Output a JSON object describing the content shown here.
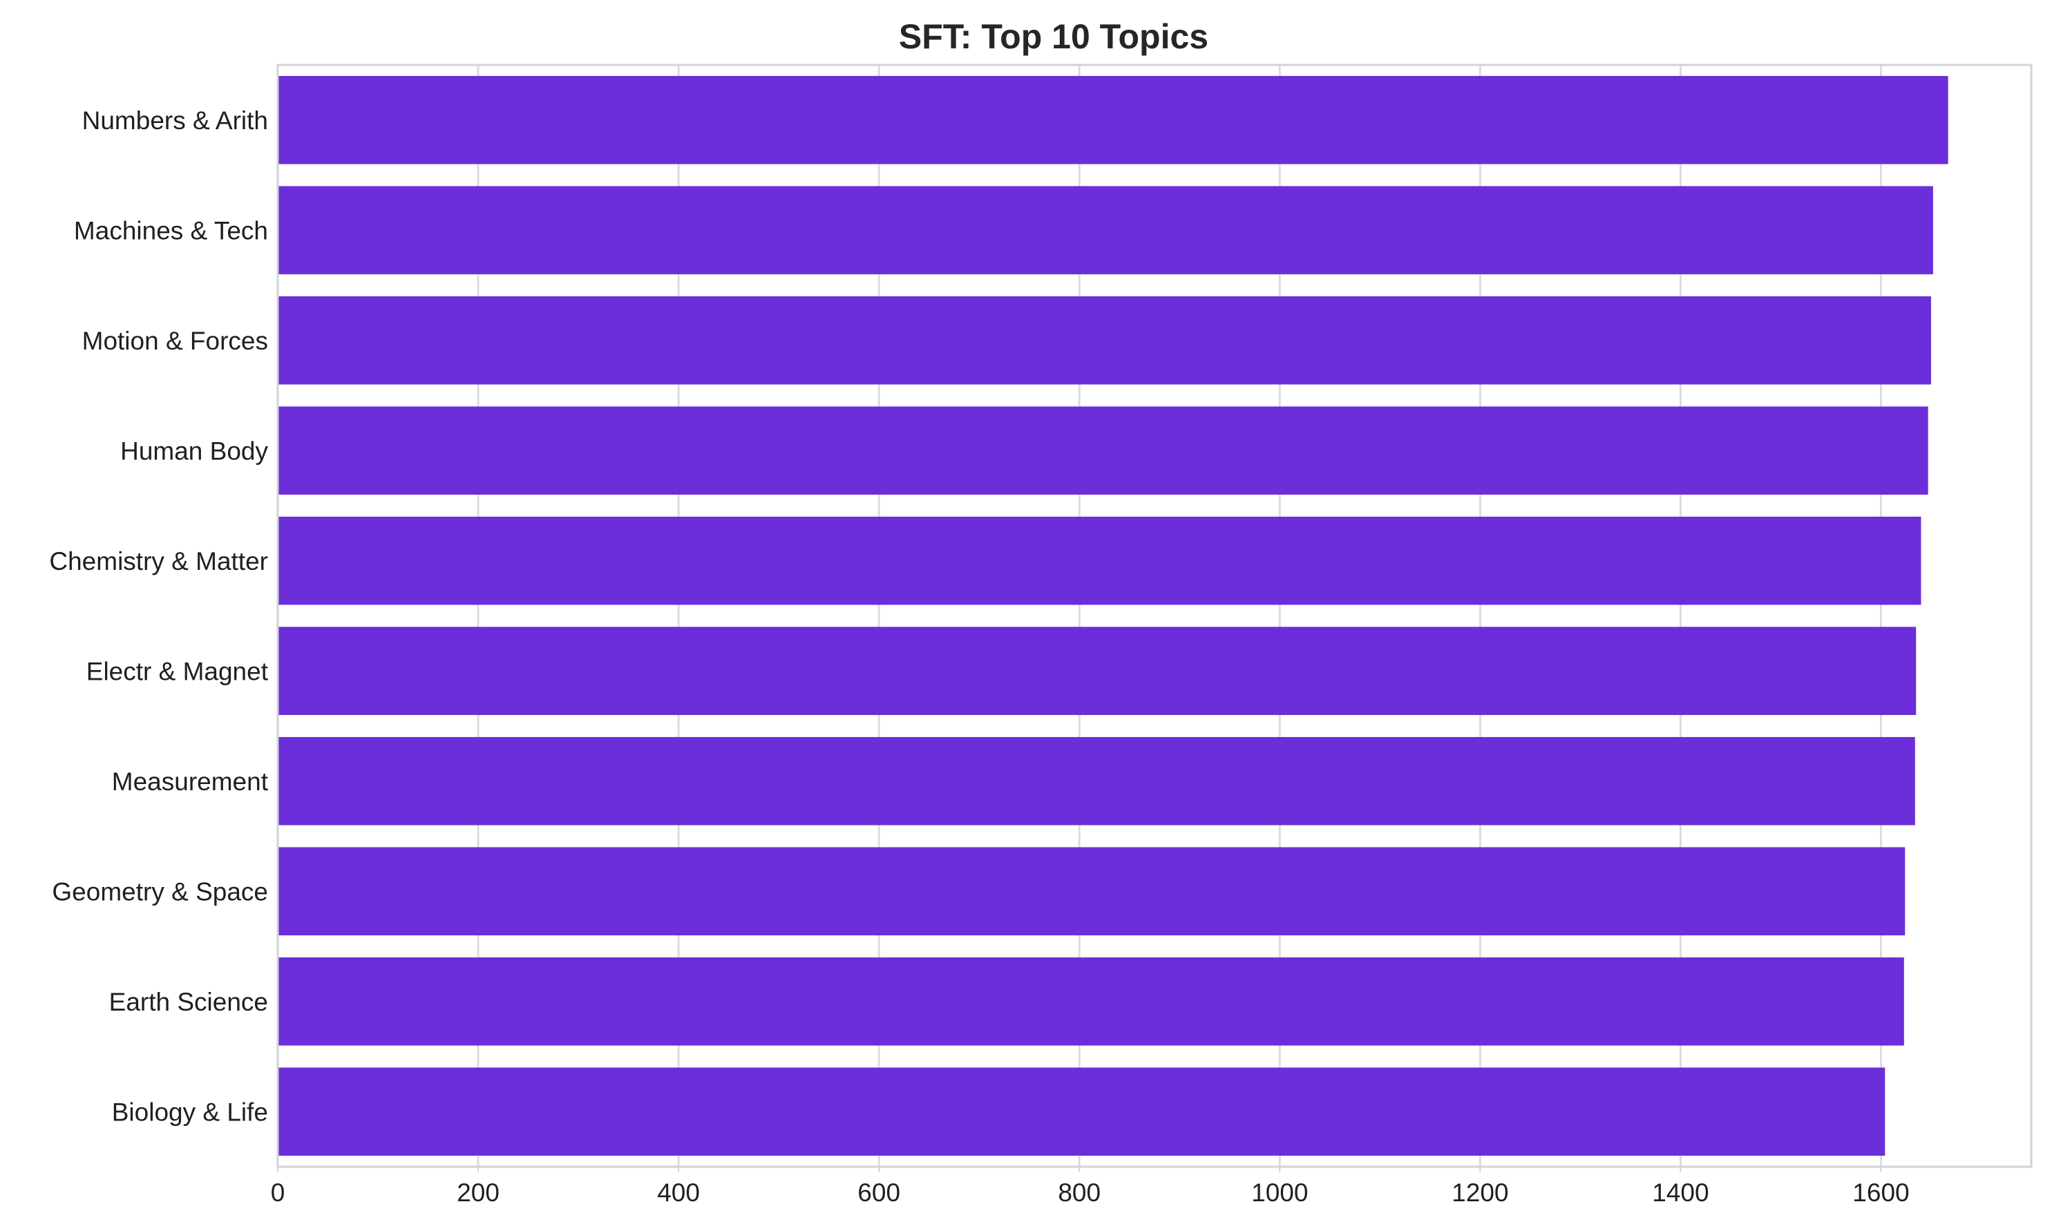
{
  "chart_data": {
    "type": "bar",
    "orientation": "horizontal",
    "title": "SFT: Top 10 Topics",
    "xlabel": "",
    "ylabel": "",
    "categories": [
      "Numbers & Arith",
      "Machines & Tech",
      "Motion & Forces",
      "Human Body",
      "Chemistry & Matter",
      "Electr & Magnet",
      "Measurement",
      "Geometry & Space",
      "Earth Science",
      "Biology & Life"
    ],
    "values": [
      1667,
      1652,
      1650,
      1647,
      1640,
      1635,
      1634,
      1624,
      1623,
      1604
    ],
    "xlim": [
      0,
      1750
    ],
    "xticks": [
      0,
      200,
      400,
      600,
      800,
      1000,
      1200,
      1400,
      1600
    ],
    "xtick_labels": [
      "0",
      "200",
      "400",
      "600",
      "800",
      "1000",
      "1200",
      "1400",
      "1600"
    ],
    "grid": true,
    "legend": "none",
    "bar_color": "#6c2ed8"
  }
}
